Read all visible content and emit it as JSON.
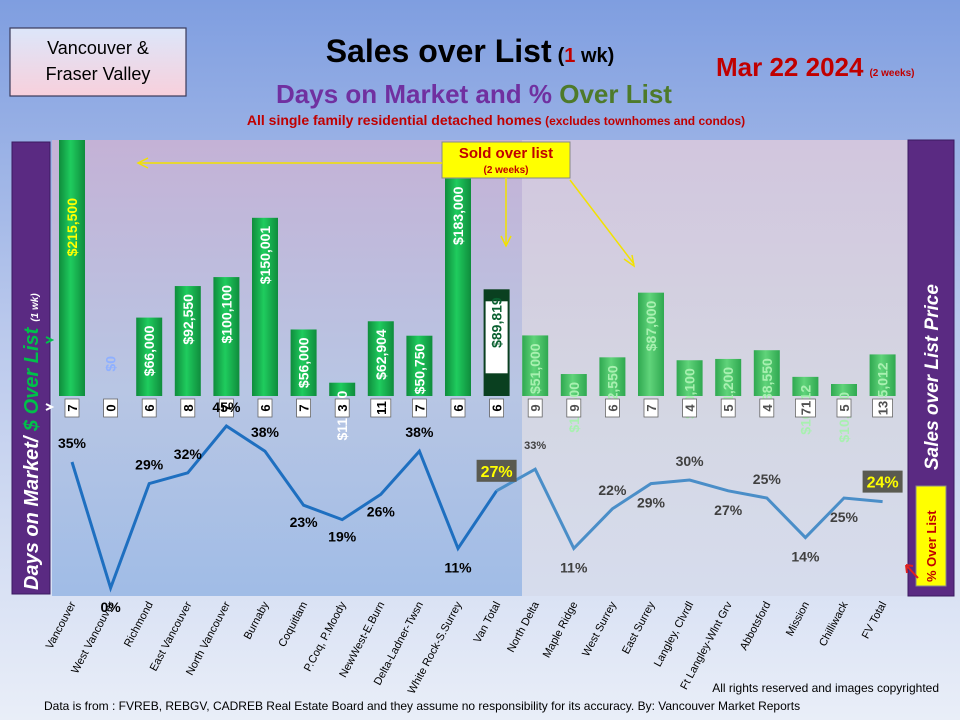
{
  "header": {
    "region_line1": "Vancouver &",
    "region_line2": "Fraser Valley",
    "title": "Sales over List",
    "title_paren_open": "(",
    "title_paren_num": "1",
    "title_paren_rest": " wk)",
    "subtitle_part1": "Days on Market and % ",
    "subtitle_part2": "Over List",
    "note_main": "All single family residential detached homes",
    "note_paren": " (excludes townhomes and condos)",
    "date": "Mar 22  2024",
    "date_note": "(2 weeks)"
  },
  "callout": {
    "line1": "Sold over list",
    "line2": "(2 weeks)"
  },
  "left_label": {
    "part1": "Days on Market/ ",
    "part2": "$ Over List",
    "small": "(1 wk)"
  },
  "right_label": {
    "main": "Sales over List Price",
    "pct": "% Over List"
  },
  "footer": {
    "copyright": "All rights reserved and  images copyrighted",
    "source": "Data is from : FVREB, REBGV, CADREB Real Estate Board and they assume no responsibility for its accuracy. By: Vancouver  Market Reports"
  },
  "colors": {
    "bar_green": "#00b050",
    "bar_total_dark": "#0a4020",
    "bar_fv": "#3cc060",
    "line_van": "#1e6fc0",
    "line_fv": "#4a8ec8",
    "label_van_amount": "#ffffff",
    "label_fv_amount": "#a8f0b0",
    "label_zero": "#8fb0ff",
    "title_accent": "#c00000",
    "subtitle_purple": "#7030a0",
    "subtitle_green": "#4e7a2a"
  },
  "chart_data": {
    "type": "bar",
    "categories": [
      "Vancouver",
      "West Vancouver",
      "Richmond",
      "East Vancouver",
      "North Vancouver",
      "Burnaby",
      "Coquitlam",
      "P.Coq, P.Moody",
      "NewWest-E.Burn",
      "Delta-Ladner-Twsn",
      "White Rock-S.Surrey",
      "Van Total",
      "North Delta",
      "Maple Ridge",
      "West Surrey",
      "East Surrey",
      "Langley, Clvrdl",
      "Ft Langley-Wlnt Grv",
      "Abbotsford",
      "Mission",
      "Chilliwack",
      "FV Total"
    ],
    "series": [
      {
        "values": [
          215500,
          0,
          66000,
          92550,
          100100,
          150001,
          56000,
          11200,
          62904,
          50750,
          183000,
          89819,
          51000,
          18500,
          32550,
          87000,
          30100,
          31200,
          38550,
          16112,
          10100,
          35012
        ],
        "labels": [
          "$215,500",
          "$0",
          "$66,000",
          "$92,550",
          "$100,100",
          "$150,001",
          "$56,000",
          "$11,200",
          "$62,904",
          "$50,750",
          "$183,000",
          "$89,819",
          "$51,000",
          "$18,500",
          "$32,550",
          "$87,000",
          "$30,100",
          "$31,200",
          "$38,550",
          "$16,112",
          "$10,100",
          "$35,012"
        ]
      },
      {
        "values": [
          7,
          0,
          6,
          8,
          7,
          6,
          7,
          3,
          11,
          7,
          6,
          6,
          9,
          9,
          6,
          7,
          4,
          5,
          4,
          71,
          5,
          13
        ],
        "labels": [
          "7",
          "0",
          "6",
          "8",
          "7",
          "6",
          "7",
          "3",
          "11",
          "7",
          "6",
          "6",
          "9",
          "9",
          "6",
          "7",
          "4",
          "5",
          "4",
          "71",
          "5",
          "13"
        ]
      },
      {
        "values": [
          35,
          0,
          29,
          32,
          45,
          38,
          23,
          19,
          26,
          38,
          11,
          27,
          33,
          11,
          22,
          29,
          30,
          27,
          25,
          14,
          25,
          24
        ],
        "labels": [
          "35%",
          "0%",
          "29%",
          "32%",
          "45%",
          "38%",
          "23%",
          "19%",
          "26%",
          "38%",
          "11%",
          "27%",
          "33%",
          "11%",
          "22%",
          "29%",
          "30%",
          "27%",
          "25%",
          "14%",
          "25%",
          "24%"
        ]
      }
    ],
    "grid": false
  }
}
